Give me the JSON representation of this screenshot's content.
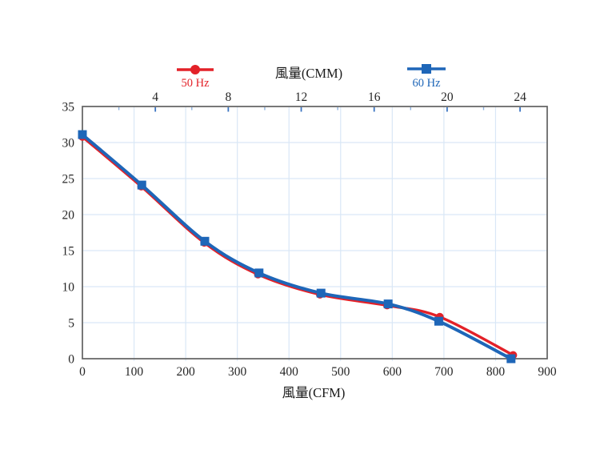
{
  "chart_data": {
    "type": "line",
    "top_axis_title": "風量(CMM)",
    "bottom_axis_title": "風量(CFM)",
    "legend": [
      {
        "label": "50 Hz",
        "color": "#e32128",
        "marker": "circle"
      },
      {
        "label": "60 Hz",
        "color": "#1e66b8",
        "marker": "square"
      }
    ],
    "x_axis_bottom": {
      "title": "風量(CFM)",
      "min": 0,
      "max": 900,
      "tick_step": 100,
      "ticks": [
        0,
        100,
        200,
        300,
        400,
        500,
        600,
        700,
        800,
        900
      ]
    },
    "x_axis_top": {
      "title": "風量(CMM)",
      "cfm_per_cmm": 35.31,
      "major_ticks": [
        4,
        8,
        12,
        16,
        20,
        24
      ],
      "minor_ticks": [
        2,
        4,
        6,
        8,
        10,
        12,
        14,
        16,
        18,
        20,
        22,
        24
      ]
    },
    "y_axis": {
      "min": 0,
      "max": 35,
      "tick_step": 5,
      "ticks": [
        0,
        5,
        10,
        15,
        20,
        25,
        30,
        35
      ]
    },
    "series": [
      {
        "name": "50 Hz",
        "color": "#e32128",
        "marker": "circle",
        "points": [
          [
            0,
            30.8
          ],
          [
            114,
            23.9
          ],
          [
            236,
            16.1
          ],
          [
            340,
            11.7
          ],
          [
            460,
            8.9
          ],
          [
            590,
            7.4
          ],
          [
            692,
            5.8
          ],
          [
            834,
            0.5
          ]
        ]
      },
      {
        "name": "60 Hz",
        "color": "#1e66b8",
        "marker": "square",
        "points": [
          [
            0,
            31.1
          ],
          [
            115,
            24.1
          ],
          [
            237,
            16.3
          ],
          [
            342,
            11.9
          ],
          [
            462,
            9.1
          ],
          [
            592,
            7.6
          ],
          [
            690,
            5.2
          ],
          [
            830,
            0
          ]
        ]
      }
    ],
    "grid": {
      "color": "#d9e7f6",
      "horizontal_value_step": 5,
      "vertical_value_step": 100
    },
    "colors": {
      "plot_border": "#616161",
      "tick_text": "#262626",
      "top_tick_major": "#3a74c2",
      "top_tick_minor": "#8cb0dd",
      "axis_title_text": "#1a1a1a"
    }
  }
}
